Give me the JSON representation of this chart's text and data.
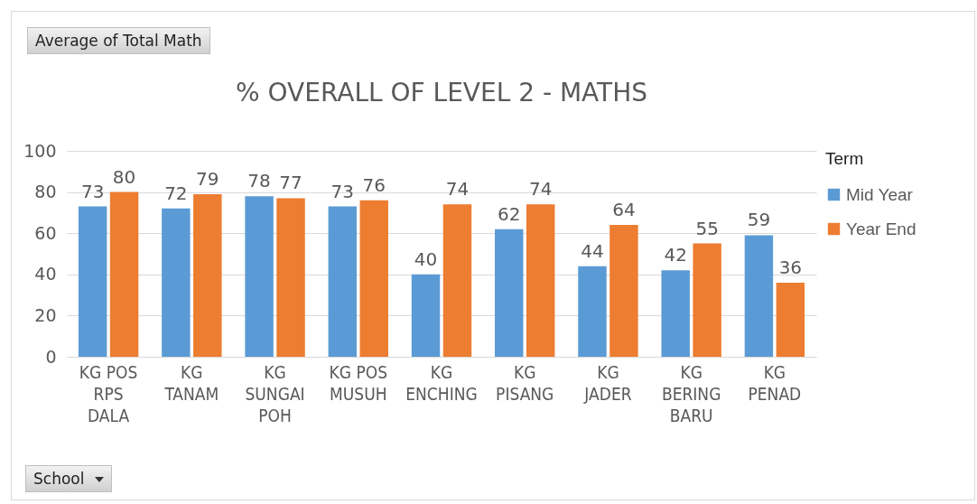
{
  "chart_data": {
    "type": "bar",
    "title": "% OVERALL OF LEVEL 2 - MATHS",
    "annotations": [
      "Average of Total Math"
    ],
    "xlabel": "School",
    "legend_title": "Term",
    "categories": [
      "KG POS RPS DALA",
      "KG TANAM",
      "KG SUNGAI POH",
      "KG POS MUSUH",
      "KG ENCHING",
      "KG PISANG",
      "KG JADER",
      "KG BERING BARU",
      "KG PENAD"
    ],
    "series": [
      {
        "name": "Mid Year",
        "color": "#5b9bd5",
        "values": [
          73,
          72,
          78,
          73,
          40,
          62,
          44,
          42,
          59
        ]
      },
      {
        "name": "Year End",
        "color": "#ed7d31",
        "values": [
          80,
          79,
          77,
          76,
          74,
          74,
          64,
          55,
          36
        ]
      }
    ],
    "ylim": [
      0,
      100
    ],
    "yticks": [
      0,
      20,
      40,
      60,
      80,
      100
    ],
    "grid": "y",
    "legend": "right",
    "data_labels": true
  }
}
